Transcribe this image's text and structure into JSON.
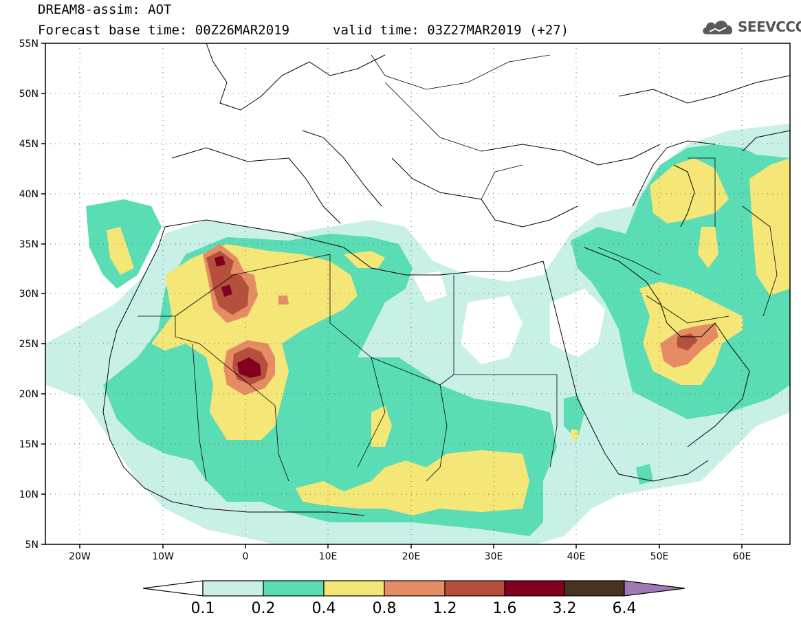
{
  "header": {
    "title": "DREAM8-assim: AOT",
    "base_time": "Forecast base time: 00Z26MAR2019",
    "valid_time": "valid time: 03Z27MAR2019 (+27)"
  },
  "logo": {
    "text": "SEEVCCC",
    "icon": "cloud-icon"
  },
  "map": {
    "lon_range": [
      -25,
      65
    ],
    "lat_range": [
      5,
      55
    ],
    "lat_ticks": [
      "55N",
      "50N",
      "45N",
      "40N",
      "35N",
      "30N",
      "25N",
      "20N",
      "15N",
      "10N",
      "5N"
    ],
    "lon_ticks": [
      "20W",
      "10W",
      "0",
      "10E",
      "20E",
      "30E",
      "40E",
      "50E",
      "60E"
    ],
    "grid": "dotted"
  },
  "colorbar": {
    "thresholds": [
      "0.1",
      "0.2",
      "0.4",
      "0.8",
      "1.2",
      "1.6",
      "3.2",
      "6.4"
    ],
    "colors": [
      "#ffffff",
      "#c8f0e6",
      "#5adcb4",
      "#f5e678",
      "#e68c64",
      "#b4503c",
      "#82001e",
      "#46321e",
      "#a078b4"
    ]
  }
}
